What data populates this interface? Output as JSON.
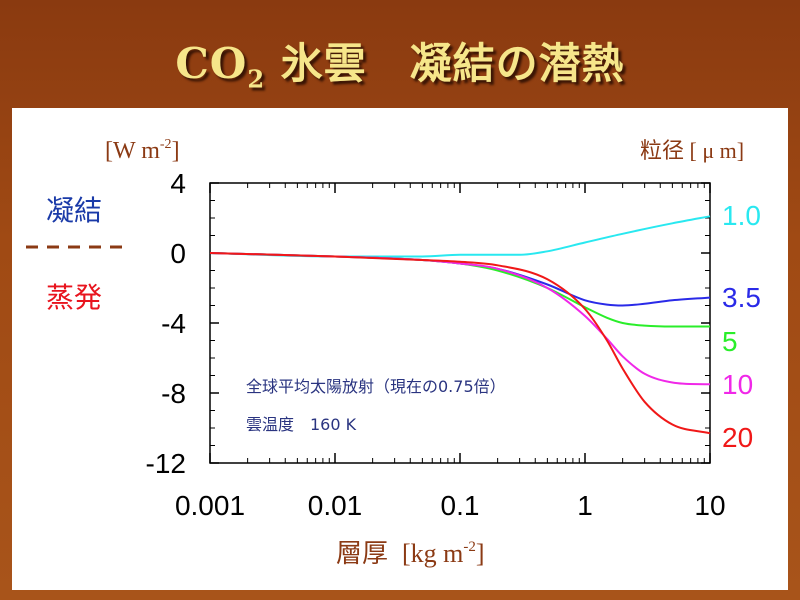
{
  "title": {
    "main": "CO",
    "sub": "2",
    "rest": " 氷雲　凝結の潜熱"
  },
  "labels": {
    "y_unit": "[W m",
    "y_unit_exp": "-2",
    "y_unit_close": "]",
    "right_unit": "粒径 [ μ m]",
    "condensation": "凝結",
    "evaporation": "蒸発",
    "annotation_line1": "全球平均太陽放射（現在の0.75倍）",
    "annotation_line2": "雲温度　160 K",
    "x_label": "層厚",
    "x_unit": "[kg m",
    "x_unit_exp": "-2",
    "x_unit_close": "]"
  },
  "colors": {
    "title": "#f6e68a",
    "unit_text": "#8b3a14",
    "condensation": "#1a3aa8",
    "evaporation": "#e8141e",
    "annotation": "#2a3480",
    "divider": "#8b3a14"
  },
  "chart_data": {
    "type": "line",
    "title": "CO2 氷雲　凝結の潜熱",
    "xlabel": "層厚 [kg m-2]",
    "ylabel": "[W m-2]",
    "xscale": "log",
    "xlim": [
      0.001,
      10
    ],
    "ylim": [
      -12,
      4
    ],
    "x_ticks": [
      {
        "value": 0.001,
        "label": "0.001"
      },
      {
        "value": 0.01,
        "label": "0.01"
      },
      {
        "value": 0.1,
        "label": "0.1"
      },
      {
        "value": 1,
        "label": "1"
      },
      {
        "value": 10,
        "label": "10"
      }
    ],
    "y_ticks": [
      {
        "value": 4,
        "label": "4"
      },
      {
        "value": 0,
        "label": "0"
      },
      {
        "value": -4,
        "label": "-4"
      },
      {
        "value": -8,
        "label": "-8"
      },
      {
        "value": -12,
        "label": "-12"
      }
    ],
    "series": [
      {
        "name": "1.0",
        "color": "#29e8f0",
        "x": [
          0.001,
          0.01,
          0.05,
          0.1,
          0.3,
          0.5,
          1,
          2,
          5,
          10
        ],
        "values": [
          0,
          -0.2,
          -0.2,
          -0.1,
          -0.1,
          0.1,
          0.6,
          1.1,
          1.7,
          2.1
        ]
      },
      {
        "name": "3.5",
        "color": "#2a2ae8",
        "x": [
          0.001,
          0.01,
          0.05,
          0.1,
          0.2,
          0.5,
          1,
          1.5,
          2,
          3,
          5,
          10
        ],
        "values": [
          0,
          -0.2,
          -0.4,
          -0.6,
          -0.9,
          -1.8,
          -2.7,
          -2.95,
          -3.0,
          -2.9,
          -2.7,
          -2.55
        ]
      },
      {
        "name": "5",
        "color": "#2aee2a",
        "x": [
          0.001,
          0.01,
          0.05,
          0.1,
          0.2,
          0.5,
          1,
          1.5,
          2,
          3,
          5,
          10
        ],
        "values": [
          0,
          -0.2,
          -0.4,
          -0.6,
          -1.0,
          -2.0,
          -3.1,
          -3.7,
          -4.0,
          -4.15,
          -4.2,
          -4.2
        ]
      },
      {
        "name": "10",
        "color": "#f028e8",
        "x": [
          0.001,
          0.01,
          0.05,
          0.1,
          0.2,
          0.5,
          1,
          1.5,
          2,
          3,
          5,
          10
        ],
        "values": [
          0,
          -0.2,
          -0.4,
          -0.6,
          -0.9,
          -2.0,
          -3.6,
          -4.9,
          -5.9,
          -6.9,
          -7.4,
          -7.5
        ]
      },
      {
        "name": "20",
        "color": "#f01818",
        "x": [
          0.001,
          0.01,
          0.05,
          0.1,
          0.2,
          0.5,
          1,
          1.5,
          2,
          3,
          5,
          10
        ],
        "values": [
          0,
          -0.2,
          -0.4,
          -0.5,
          -0.7,
          -1.5,
          -3.2,
          -5.0,
          -6.6,
          -8.5,
          -9.8,
          -10.3
        ]
      }
    ]
  }
}
